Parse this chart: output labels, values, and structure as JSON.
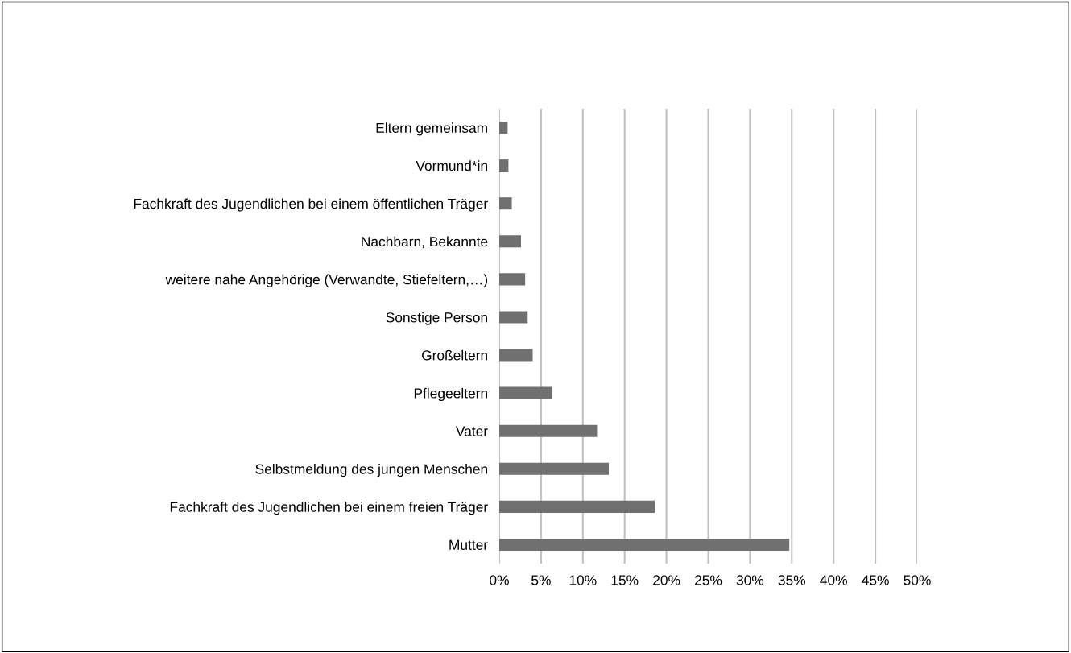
{
  "chart_data": {
    "type": "bar",
    "orientation": "horizontal",
    "categories": [
      "Eltern gemeinsam",
      "Vormund*in",
      "Fachkraft des Jugendlichen bei einem öffentlichen Träger",
      "Nachbarn, Bekannte",
      "weitere nahe Angehörige (Verwandte, Stiefeltern,…)",
      "Sonstige Person",
      "Großeltern",
      "Pflegeeltern",
      "Vater",
      "Selbstmeldung des jungen Menschen",
      "Fachkraft des Jugendlichen bei einem freien Träger",
      "Mutter"
    ],
    "values": [
      1.0,
      1.1,
      1.5,
      2.6,
      3.1,
      3.4,
      4.0,
      6.3,
      11.7,
      13.1,
      18.6,
      34.7
    ],
    "color": "#707070",
    "xlim": [
      0,
      50
    ],
    "xticks": [
      {
        "value": 0,
        "label": "0%"
      },
      {
        "value": 5,
        "label": "5%"
      },
      {
        "value": 10,
        "label": "10%"
      },
      {
        "value": 15,
        "label": "15%"
      },
      {
        "value": 20,
        "label": "20%"
      },
      {
        "value": 25,
        "label": "25%"
      },
      {
        "value": 30,
        "label": "30%"
      },
      {
        "value": 35,
        "label": "35%"
      },
      {
        "value": 40,
        "label": "40%"
      },
      {
        "value": 45,
        "label": "45%"
      },
      {
        "value": 50,
        "label": "50%"
      }
    ],
    "grid": "x"
  }
}
